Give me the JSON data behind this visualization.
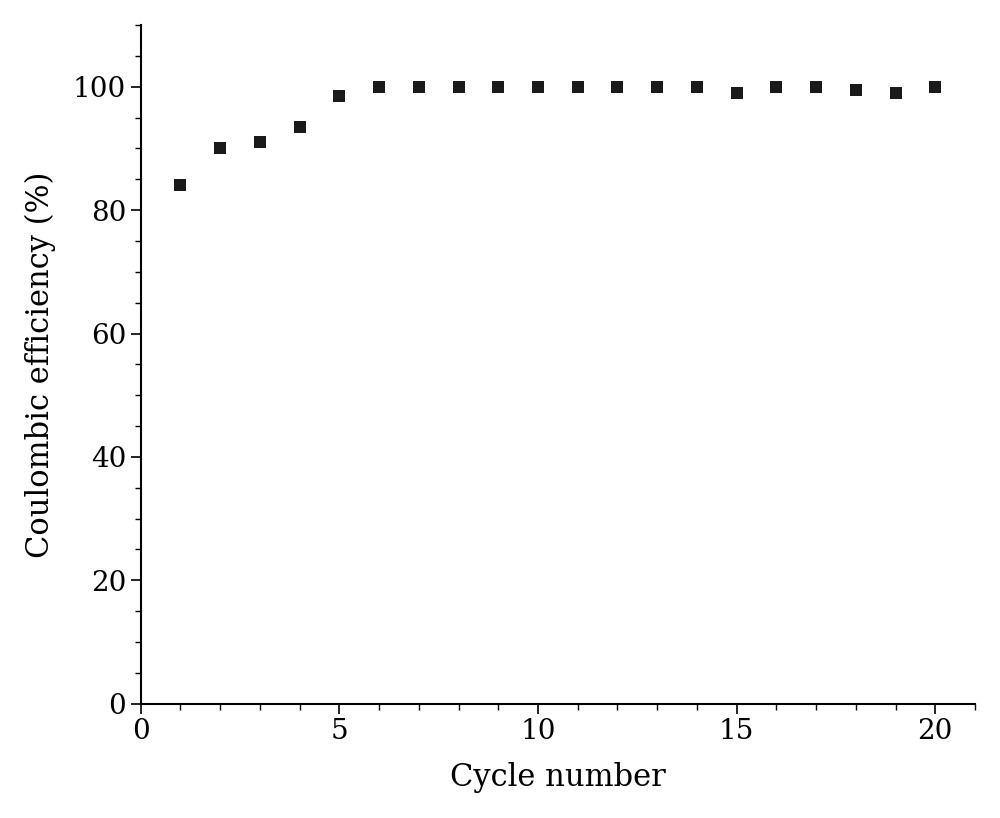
{
  "x": [
    1,
    2,
    3,
    4,
    5,
    6,
    7,
    8,
    9,
    10,
    11,
    12,
    13,
    14,
    15,
    16,
    17,
    18,
    19,
    20
  ],
  "y": [
    84,
    90,
    91,
    93.5,
    98.5,
    100,
    100,
    100,
    100,
    100,
    100,
    100,
    100,
    100,
    99,
    100,
    100,
    99.5,
    99,
    100
  ],
  "xlabel": "Cycle number",
  "ylabel": "Coulombic efficiency (%)",
  "xlim": [
    0,
    21
  ],
  "ylim": [
    0,
    110
  ],
  "yticks": [
    0,
    20,
    40,
    60,
    80,
    100
  ],
  "xticks": [
    0,
    5,
    10,
    15,
    20
  ],
  "marker": "s",
  "marker_color": "#1a1a1a",
  "marker_size": 80,
  "background_color": "#ffffff",
  "xlabel_fontsize": 22,
  "ylabel_fontsize": 22,
  "tick_fontsize": 20,
  "spine_linewidth": 1.5
}
